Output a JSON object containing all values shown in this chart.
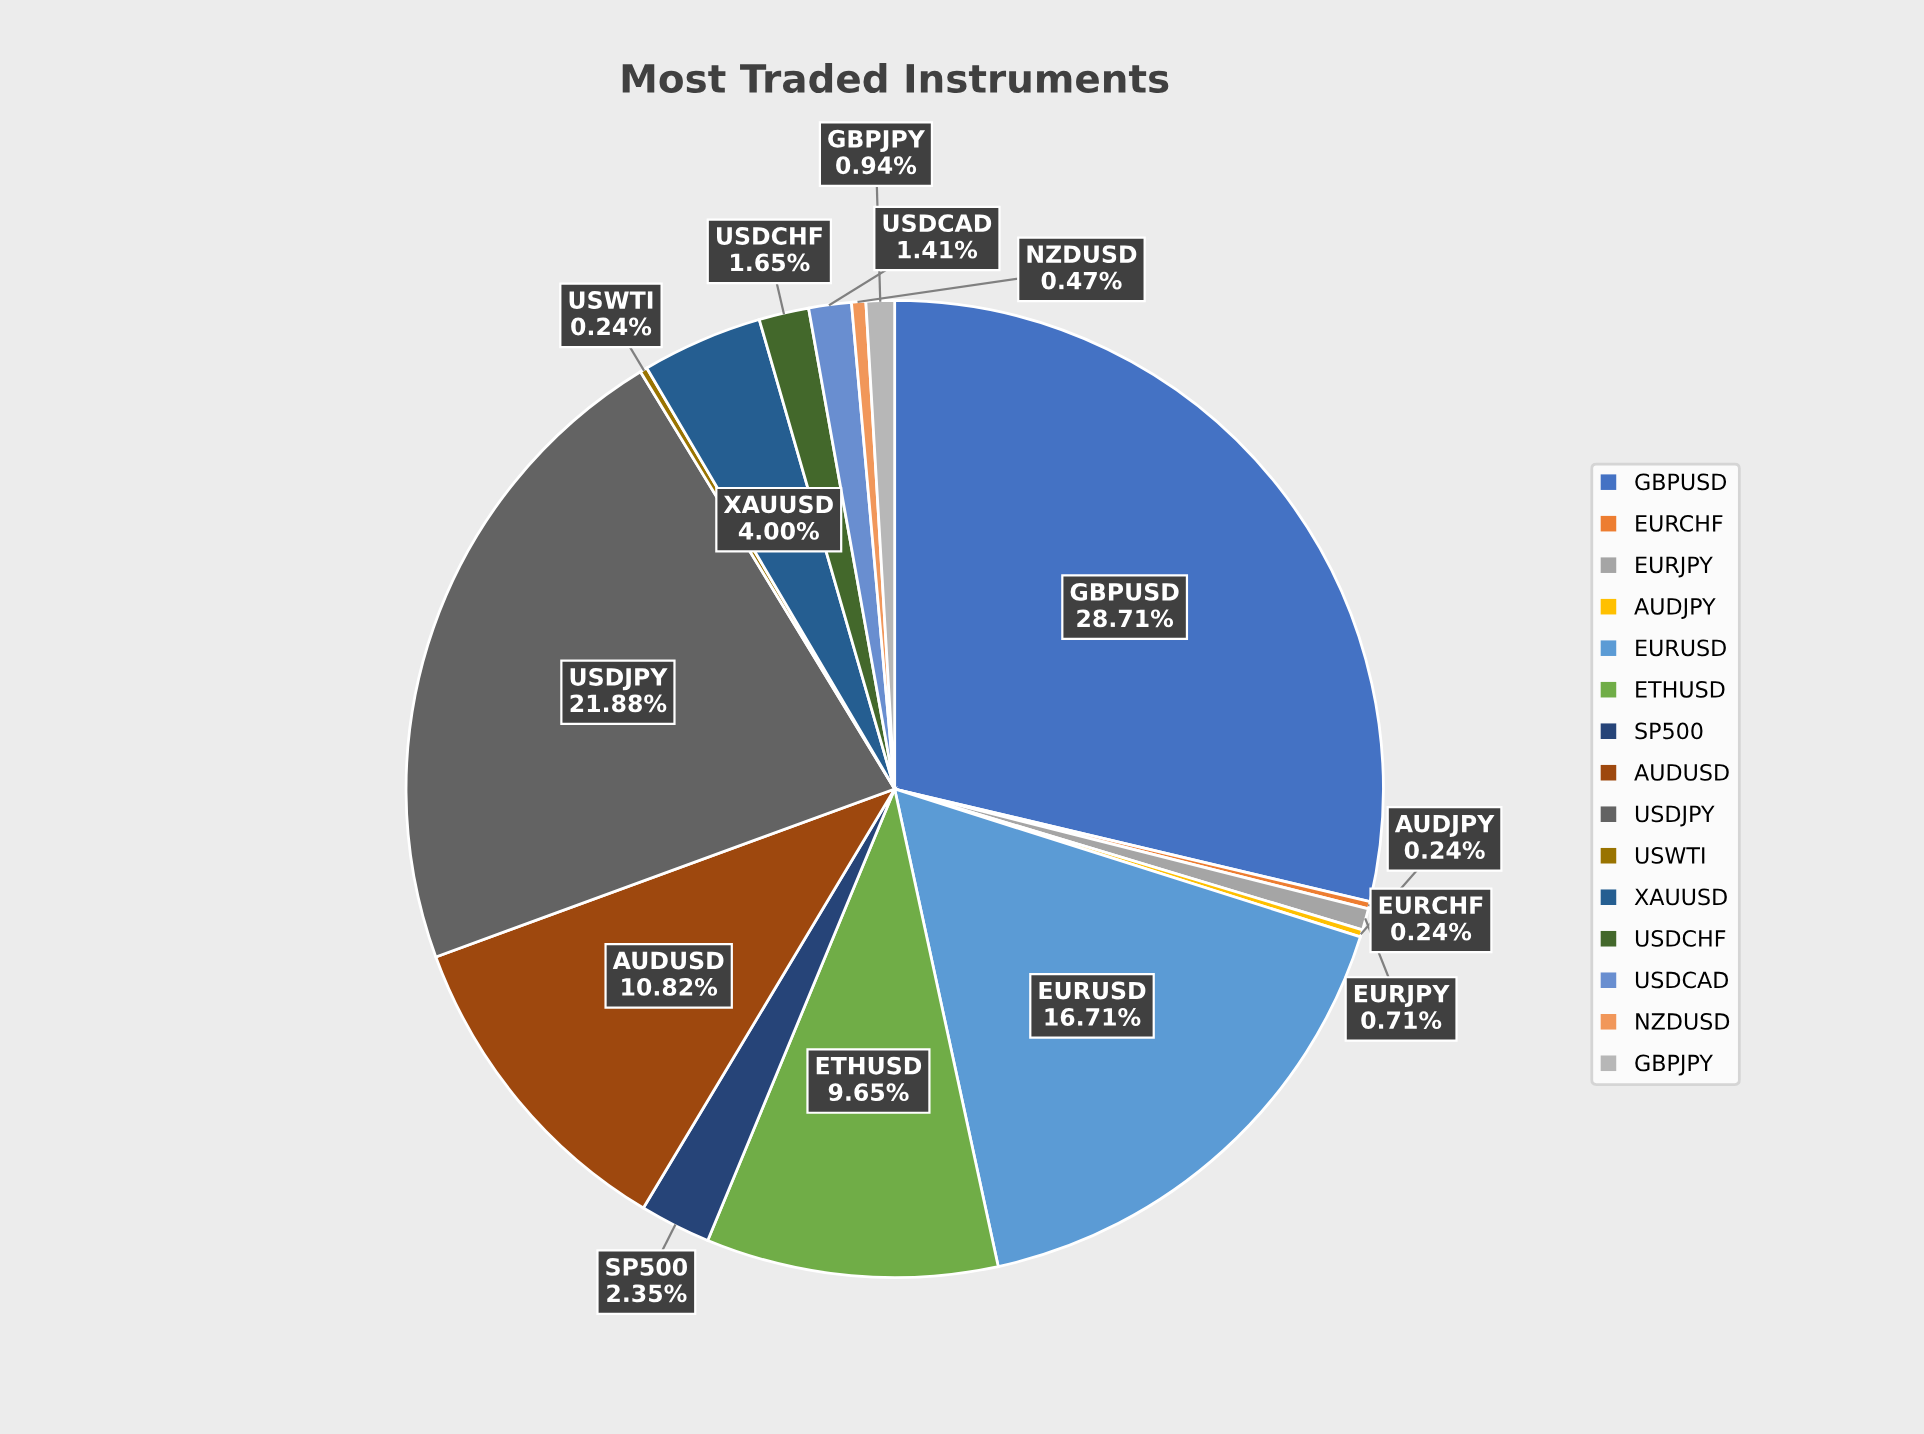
{
  "chart_data": {
    "type": "pie",
    "title": "Most Traded Instruments",
    "categories": [
      "GBPUSD",
      "EURCHF",
      "EURJPY",
      "AUDJPY",
      "EURUSD",
      "ETHUSD",
      "SP500",
      "AUDUSD",
      "USDJPY",
      "USWTI",
      "XAUUSD",
      "USDCHF",
      "USDCAD",
      "NZDUSD",
      "GBPJPY"
    ],
    "values": [
      28.71,
      0.24,
      0.71,
      0.24,
      16.71,
      9.65,
      2.35,
      10.82,
      21.88,
      0.24,
      4.0,
      1.65,
      1.41,
      0.47,
      0.94
    ],
    "colors": [
      "#4472c4",
      "#ed7d31",
      "#a5a5a5",
      "#ffc000",
      "#5b9bd5",
      "#70ad47",
      "#264478",
      "#9e480e",
      "#636363",
      "#997300",
      "#255e91",
      "#43682b",
      "#698ed0",
      "#f1975a",
      "#b7b7b7"
    ],
    "value_labels": [
      "28.71%",
      "0.24%",
      "0.71%",
      "0.24%",
      "16.71%",
      "9.65%",
      "2.35%",
      "10.82%",
      "21.88%",
      "0.24%",
      "4.00%",
      "1.65%",
      "1.41%",
      "0.47%",
      "0.94%"
    ],
    "legend": "right"
  }
}
